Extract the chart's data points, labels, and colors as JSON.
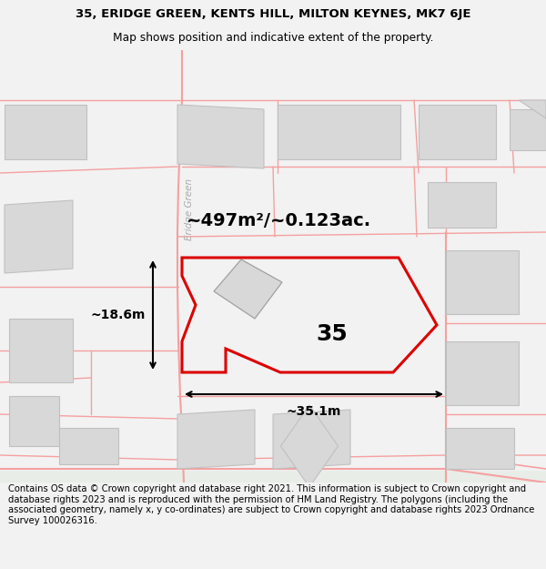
{
  "title_line1": "35, ERIDGE GREEN, KENTS HILL, MILTON KEYNES, MK7 6JE",
  "title_line2": "Map shows position and indicative extent of the property.",
  "footer_text": "Contains OS data © Crown copyright and database right 2021. This information is subject to Crown copyright and database rights 2023 and is reproduced with the permission of HM Land Registry. The polygons (including the associated geometry, namely x, y co-ordinates) are subject to Crown copyright and database rights 2023 Ordnance Survey 100026316.",
  "area_label": "~497m²/~0.123ac.",
  "property_number": "35",
  "width_label": "~35.1m",
  "height_label": "~18.6m",
  "street_label": "Eridge Green",
  "bg_color": "#f2f2f2",
  "map_bg": "#ffffff",
  "plot_border_color": "#dd0000",
  "road_color": "#f5a0a0",
  "building_color": "#d8d8d8",
  "building_edge": "#c0c0c0",
  "title_fontsize": 9.5,
  "subtitle_fontsize": 8.8,
  "footer_fontsize": 7.2,
  "title_weight": "normal"
}
